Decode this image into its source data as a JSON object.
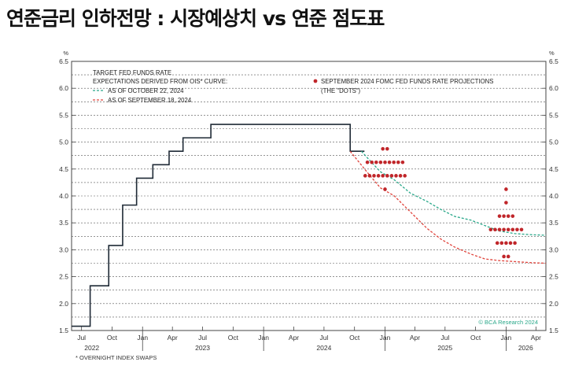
{
  "page": {
    "title": "연준금리 인하전망 : 시장예상치 vs 연준 점도표",
    "footnote": "* OVERNIGHT INDEX SWAPS",
    "watermark": "© BCA Research 2024"
  },
  "chart_data": {
    "type": "line",
    "y_unit": "%",
    "ylim": [
      1.5,
      6.5
    ],
    "yticks": [
      "1.5",
      "2.0",
      "2.5",
      "3.0",
      "3.5",
      "4.0",
      "4.5",
      "5.0",
      "5.5",
      "6.0",
      "6.5"
    ],
    "x_ticks": [
      {
        "date": "2022-07",
        "label": "Jul"
      },
      {
        "date": "2022-10",
        "label": "Oct"
      },
      {
        "date": "2023-01",
        "label": "Jan"
      },
      {
        "date": "2023-04",
        "label": "Apr"
      },
      {
        "date": "2023-07",
        "label": "Jul"
      },
      {
        "date": "2023-10",
        "label": "Oct"
      },
      {
        "date": "2024-01",
        "label": "Jan"
      },
      {
        "date": "2024-04",
        "label": "Apr"
      },
      {
        "date": "2024-07",
        "label": "Jul"
      },
      {
        "date": "2024-10",
        "label": "Oct"
      },
      {
        "date": "2025-01",
        "label": "Jan"
      },
      {
        "date": "2025-04",
        "label": "Apr"
      },
      {
        "date": "2025-07",
        "label": "Jul"
      },
      {
        "date": "2025-10",
        "label": "Oct"
      },
      {
        "date": "2026-01",
        "label": "Jan"
      },
      {
        "date": "2026-04",
        "label": "Apr"
      }
    ],
    "year_labels": [
      {
        "date": "2022-08",
        "label": "2022"
      },
      {
        "date": "2023-07",
        "label": "2023"
      },
      {
        "date": "2024-07",
        "label": "2024"
      },
      {
        "date": "2025-07",
        "label": "2025"
      },
      {
        "date": "2026-03",
        "label": "2026"
      }
    ],
    "xlim": [
      "2022-06",
      "2026-05"
    ],
    "grid": "horizontal dashed",
    "legend": {
      "left_heading_1": "TARGET FED FUNDS RATE",
      "left_heading_2": "EXPECTATIONS DERIVED FROM OIS* CURVE:",
      "right_line_1": "SEPTEMBER 2024 FOMC FED FUNDS RATE PROJECTIONS",
      "right_line_2": "(THE \"DOTS\")"
    },
    "series": [
      {
        "name": "TARGET FED FUNDS RATE",
        "style": "step",
        "color": "#1f2a36",
        "points": [
          [
            "2022-06-01",
            1.58
          ],
          [
            "2022-07-27",
            2.33
          ],
          [
            "2022-09-21",
            3.08
          ],
          [
            "2022-11-02",
            3.83
          ],
          [
            "2022-12-14",
            4.33
          ],
          [
            "2023-02-01",
            4.58
          ],
          [
            "2023-03-22",
            4.83
          ],
          [
            "2023-05-03",
            5.08
          ],
          [
            "2023-07-26",
            5.33
          ],
          [
            "2024-09-18",
            4.83
          ],
          [
            "2024-10-31",
            4.83
          ]
        ]
      },
      {
        "name": "AS OF OCTOBER 22, 2024",
        "style": "dashed",
        "color": "#2aa88a",
        "points": [
          [
            "2024-10-22",
            4.83
          ],
          [
            "2024-11-10",
            4.7
          ],
          [
            "2024-12-18",
            4.45
          ],
          [
            "2025-01-29",
            4.3
          ],
          [
            "2025-03-19",
            4.05
          ],
          [
            "2025-05-07",
            3.9
          ],
          [
            "2025-06-18",
            3.75
          ],
          [
            "2025-07-30",
            3.62
          ],
          [
            "2025-09-17",
            3.55
          ],
          [
            "2025-10-29",
            3.45
          ],
          [
            "2025-12-10",
            3.35
          ],
          [
            "2026-01-28",
            3.3
          ],
          [
            "2026-03-18",
            3.28
          ],
          [
            "2026-05-01",
            3.27
          ]
        ]
      },
      {
        "name": "AS OF SEPTEMBER 18, 2024",
        "style": "dashed",
        "color": "#e0443c",
        "points": [
          [
            "2024-09-18",
            4.83
          ],
          [
            "2024-11-07",
            4.45
          ],
          [
            "2024-12-18",
            4.15
          ],
          [
            "2025-01-29",
            4.0
          ],
          [
            "2025-03-19",
            3.7
          ],
          [
            "2025-05-07",
            3.4
          ],
          [
            "2025-06-18",
            3.2
          ],
          [
            "2025-07-30",
            3.05
          ],
          [
            "2025-09-17",
            2.92
          ],
          [
            "2025-10-29",
            2.83
          ],
          [
            "2025-12-10",
            2.8
          ],
          [
            "2026-01-28",
            2.78
          ],
          [
            "2026-03-18",
            2.76
          ],
          [
            "2026-05-01",
            2.75
          ]
        ]
      }
    ],
    "dots": {
      "name": "SEPTEMBER 2024 FOMC FED FUNDS RATE PROJECTIONS (THE \"DOTS\")",
      "color": "#c0262a",
      "groups": [
        {
          "date": "2025-01-01",
          "levels": [
            [
              4.875,
              2
            ],
            [
              4.625,
              9
            ],
            [
              4.375,
              10
            ],
            [
              4.125,
              1
            ]
          ]
        },
        {
          "date": "2026-01-01",
          "levels": [
            [
              4.125,
              1
            ],
            [
              3.875,
              1
            ],
            [
              3.625,
              4
            ],
            [
              3.375,
              8
            ],
            [
              3.125,
              5
            ],
            [
              2.875,
              2
            ]
          ]
        }
      ]
    }
  }
}
